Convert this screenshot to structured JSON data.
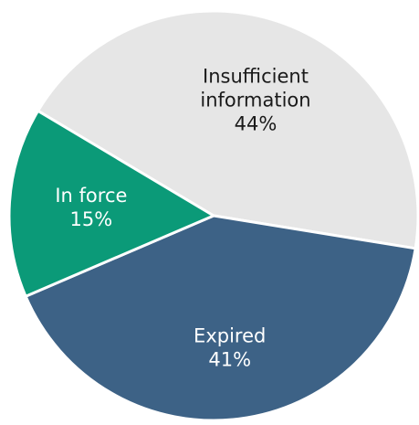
{
  "chart_data": {
    "type": "pie",
    "slices": [
      {
        "label_lines": [
          "Insufficient",
          "information"
        ],
        "value_label": "44%",
        "value": 44,
        "color": "#e6e6e6",
        "text_color": "#1a1a1a"
      },
      {
        "label_lines": [
          "Expired"
        ],
        "value_label": "41%",
        "value": 41,
        "color": "#3d6286",
        "text_color": "#ffffff"
      },
      {
        "label_lines": [
          "In force"
        ],
        "value_label": "15%",
        "value": 15,
        "color": "#0b9a78",
        "text_color": "#ffffff"
      }
    ]
  }
}
